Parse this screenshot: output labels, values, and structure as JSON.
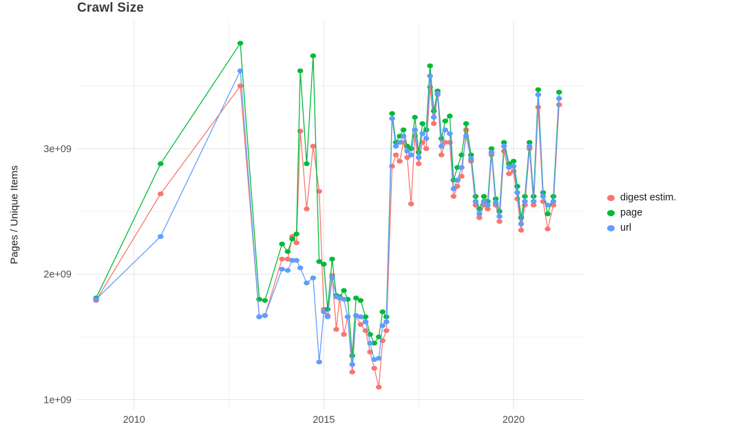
{
  "title": "Crawl Size",
  "ylabel": "Pages / Unique Items",
  "chart_data": {
    "type": "line",
    "title": "Crawl Size",
    "xlabel": "",
    "ylabel": "Pages / Unique Items",
    "y_unit": "1e+09 (values listed in billions)",
    "grid": true,
    "legend_position": "right",
    "xlim": [
      2008.5,
      2021.85
    ],
    "ylim": [
      0.92,
      4.02
    ],
    "x_ticks": [
      2010,
      2015,
      2020
    ],
    "x_tick_labels": [
      "2010",
      "2015",
      "2020"
    ],
    "x_minor_ticks": [
      2012.5,
      2017.5
    ],
    "y_ticks": [
      1,
      2,
      3
    ],
    "y_tick_labels": [
      "1e+09",
      "2e+09",
      "3e+09"
    ],
    "y_minor_ticks": [
      1.5,
      2.5,
      3.5
    ],
    "x": [
      2009.0,
      2010.7,
      2012.8,
      2013.3,
      2013.45,
      2013.9,
      2014.05,
      2014.17,
      2014.28,
      2014.38,
      2014.55,
      2014.72,
      2014.88,
      2015.0,
      2015.1,
      2015.22,
      2015.33,
      2015.42,
      2015.53,
      2015.63,
      2015.75,
      2015.85,
      2015.97,
      2016.1,
      2016.22,
      2016.33,
      2016.45,
      2016.55,
      2016.65,
      2016.8,
      2016.9,
      2017.0,
      2017.1,
      2017.2,
      2017.3,
      2017.4,
      2017.5,
      2017.6,
      2017.7,
      2017.8,
      2017.9,
      2018.0,
      2018.1,
      2018.2,
      2018.32,
      2018.42,
      2018.52,
      2018.63,
      2018.75,
      2018.88,
      2019.0,
      2019.1,
      2019.22,
      2019.32,
      2019.42,
      2019.53,
      2019.63,
      2019.75,
      2019.88,
      2020.0,
      2020.1,
      2020.2,
      2020.3,
      2020.42,
      2020.53,
      2020.65,
      2020.78,
      2020.9,
      2021.05,
      2021.2
    ],
    "series": [
      {
        "name": "digest estim.",
        "color": "#F8766D",
        "values": [
          1.79,
          2.64,
          3.5,
          1.66,
          1.67,
          2.12,
          2.12,
          2.3,
          2.25,
          3.14,
          2.52,
          3.02,
          2.66,
          1.72,
          1.67,
          1.99,
          1.56,
          1.82,
          1.52,
          1.66,
          1.22,
          1.67,
          1.6,
          1.55,
          1.38,
          1.25,
          1.1,
          1.47,
          1.55,
          2.86,
          2.95,
          2.9,
          3.05,
          2.93,
          2.56,
          3.1,
          2.88,
          3.05,
          3.0,
          3.49,
          3.2,
          3.43,
          2.95,
          3.05,
          3.05,
          2.62,
          2.7,
          2.78,
          3.15,
          2.9,
          2.55,
          2.45,
          2.55,
          2.52,
          2.95,
          2.55,
          2.42,
          2.98,
          2.8,
          2.82,
          2.6,
          2.35,
          2.55,
          3.0,
          2.55,
          3.33,
          2.58,
          2.36,
          2.55,
          3.35
        ]
      },
      {
        "name": "page",
        "color": "#00BA38",
        "values": [
          1.81,
          2.88,
          3.84,
          1.8,
          1.79,
          2.24,
          2.18,
          2.28,
          2.32,
          3.62,
          2.88,
          3.74,
          2.1,
          2.08,
          1.72,
          2.12,
          1.83,
          1.82,
          1.87,
          1.8,
          1.35,
          1.81,
          1.79,
          1.66,
          1.52,
          1.45,
          1.5,
          1.7,
          1.66,
          3.28,
          3.05,
          3.1,
          3.15,
          3.02,
          3.0,
          3.25,
          2.97,
          3.2,
          3.15,
          3.66,
          3.3,
          3.46,
          3.08,
          3.22,
          3.26,
          2.75,
          2.85,
          2.95,
          3.2,
          2.95,
          2.62,
          2.52,
          2.62,
          2.58,
          3.0,
          2.6,
          2.5,
          3.05,
          2.88,
          2.9,
          2.7,
          2.45,
          2.62,
          3.05,
          2.62,
          3.47,
          2.65,
          2.48,
          2.62,
          3.45
        ]
      },
      {
        "name": "url",
        "color": "#619CFF",
        "values": [
          1.8,
          2.3,
          3.62,
          1.66,
          1.67,
          2.04,
          2.03,
          2.11,
          2.11,
          2.05,
          1.93,
          1.97,
          1.3,
          1.7,
          1.66,
          1.97,
          1.82,
          1.81,
          1.8,
          1.66,
          1.28,
          1.67,
          1.66,
          1.62,
          1.45,
          1.32,
          1.33,
          1.59,
          1.62,
          3.24,
          3.02,
          3.05,
          3.1,
          2.98,
          2.95,
          3.15,
          2.93,
          3.12,
          3.08,
          3.58,
          3.25,
          3.44,
          3.02,
          3.15,
          3.12,
          2.68,
          2.75,
          2.85,
          3.1,
          2.92,
          2.58,
          2.48,
          2.58,
          2.55,
          2.97,
          2.57,
          2.46,
          3.02,
          2.85,
          2.86,
          2.65,
          2.4,
          2.58,
          3.02,
          2.58,
          3.43,
          2.62,
          2.55,
          2.58,
          3.4
        ]
      }
    ]
  }
}
